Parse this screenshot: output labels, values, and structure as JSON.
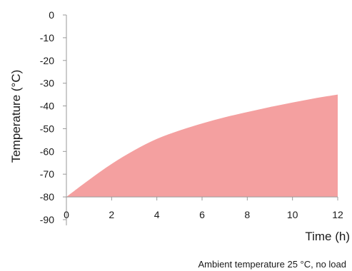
{
  "chart_data": {
    "type": "area",
    "xlabel": "Time (h)",
    "ylabel": "Temperature (°C)",
    "xlim": [
      0,
      12
    ],
    "ylim": [
      -90,
      0
    ],
    "x_ticks": [
      0,
      2,
      4,
      6,
      8,
      10,
      12
    ],
    "y_ticks": [
      0,
      -10,
      -20,
      -30,
      -40,
      -50,
      -60,
      -70,
      -80,
      -90
    ],
    "grid": false,
    "series": [
      {
        "x": [
          0,
          1,
          2,
          3,
          4,
          5,
          6,
          7,
          8,
          9,
          10,
          11,
          12
        ],
        "y": [
          -80,
          -72.5,
          -65.5,
          -59.5,
          -54.5,
          -50.8,
          -47.7,
          -45.0,
          -42.7,
          -40.5,
          -38.5,
          -36.6,
          -35
        ],
        "color": "#f4a0a0"
      }
    ]
  },
  "caption": "Ambient temperature 25 °C, no load"
}
